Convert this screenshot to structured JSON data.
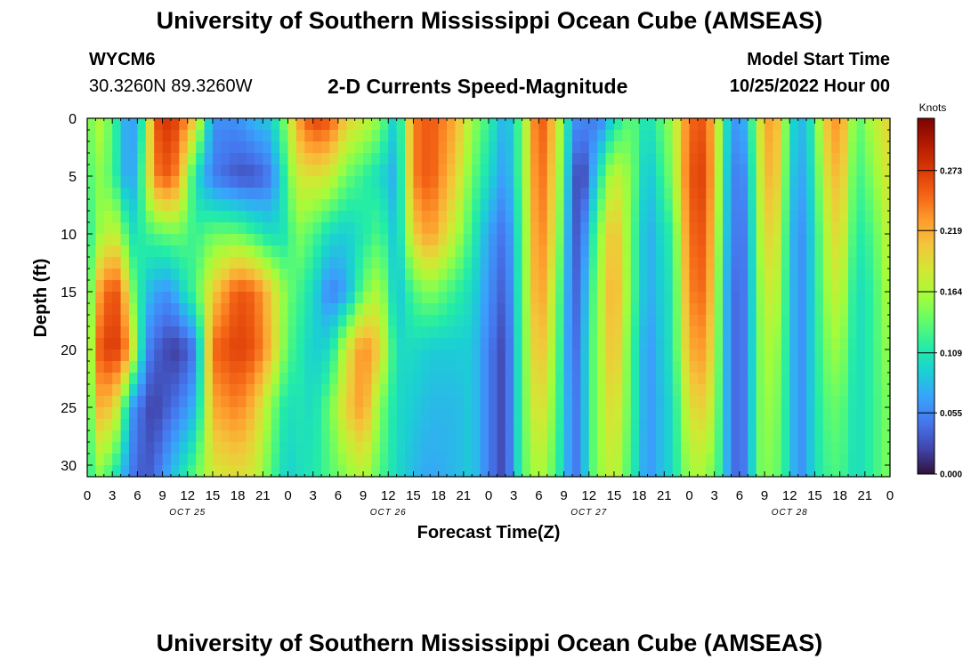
{
  "header": {
    "title": "University of Southern Mississippi Ocean Cube (AMSEAS)",
    "station_id": "WYCM6",
    "coordinates": "30.3260N  89.3260W",
    "chart_heading": "2-D Currents Speed-Magnitude",
    "model_start_label": "Model Start Time",
    "model_start_value": "10/25/2022 Hour 00"
  },
  "footer": {
    "title": "University of Southern Mississippi Ocean Cube (AMSEAS)"
  },
  "chart_data": {
    "type": "heatmap",
    "title": "2-D Currents Speed-Magnitude",
    "xlabel": "Forecast Time(Z)",
    "ylabel": "Depth (ft)",
    "ylim": [
      0,
      31
    ],
    "x_range_hours": [
      0,
      96
    ],
    "x_tick_labels": [
      "0",
      "3",
      "6",
      "9",
      "12",
      "15",
      "18",
      "21",
      "0",
      "3",
      "6",
      "9",
      "12",
      "15",
      "18",
      "21",
      "0",
      "3",
      "6",
      "9",
      "12",
      "15",
      "18",
      "21",
      "0",
      "3",
      "6",
      "9",
      "12",
      "15",
      "18",
      "21",
      "0"
    ],
    "date_labels": [
      {
        "hour": 12,
        "label": "OCT 25"
      },
      {
        "hour": 36,
        "label": "OCT 26"
      },
      {
        "hour": 60,
        "label": "OCT 27"
      },
      {
        "hour": 84,
        "label": "OCT 28"
      }
    ],
    "y_ticks": [
      0,
      5,
      10,
      15,
      20,
      25,
      30
    ],
    "colorbar": {
      "unit": "Knots",
      "min": 0.0,
      "max": 0.32,
      "ticks": [
        0.0,
        0.055,
        0.109,
        0.164,
        0.219,
        0.273
      ],
      "tick_labels": [
        "0.000",
        "0.055",
        "0.109",
        "0.164",
        "0.219",
        "0.273"
      ]
    },
    "profiles": [
      {
        "hour": 0,
        "speed": [
          0.13,
          0.12,
          0.11,
          0.1,
          0.09,
          0.09,
          0.1
        ]
      },
      {
        "hour": 1,
        "speed": [
          0.17,
          0.15,
          0.14,
          0.2,
          0.24,
          0.21,
          0.15
        ]
      },
      {
        "hour": 2,
        "speed": [
          0.16,
          0.15,
          0.17,
          0.25,
          0.27,
          0.22,
          0.14
        ]
      },
      {
        "hour": 4,
        "speed": [
          0.1,
          0.1,
          0.17,
          0.26,
          0.27,
          0.17,
          0.09
        ]
      },
      {
        "hour": 5,
        "speed": [
          0.05,
          0.05,
          0.1,
          0.16,
          0.22,
          0.07,
          0.05
        ]
      },
      {
        "hour": 7,
        "speed": [
          0.13,
          0.15,
          0.12,
          0.09,
          0.06,
          0.03,
          0.03
        ]
      },
      {
        "hour": 8,
        "speed": [
          0.26,
          0.24,
          0.13,
          0.07,
          0.04,
          0.02,
          0.04
        ]
      },
      {
        "hour": 10,
        "speed": [
          0.28,
          0.26,
          0.14,
          0.06,
          0.02,
          0.04,
          0.08
        ]
      },
      {
        "hour": 11,
        "speed": [
          0.26,
          0.22,
          0.14,
          0.09,
          0.02,
          0.05,
          0.1
        ]
      },
      {
        "hour": 13,
        "speed": [
          0.2,
          0.1,
          0.12,
          0.13,
          0.05,
          0.08,
          0.14
        ]
      },
      {
        "hour": 15,
        "speed": [
          0.06,
          0.05,
          0.14,
          0.2,
          0.25,
          0.22,
          0.18
        ]
      },
      {
        "hour": 18,
        "speed": [
          0.06,
          0.03,
          0.14,
          0.26,
          0.27,
          0.24,
          0.19
        ]
      },
      {
        "hour": 20,
        "speed": [
          0.08,
          0.03,
          0.12,
          0.25,
          0.26,
          0.21,
          0.18
        ]
      },
      {
        "hour": 22,
        "speed": [
          0.09,
          0.05,
          0.1,
          0.2,
          0.21,
          0.15,
          0.13
        ]
      },
      {
        "hour": 24,
        "speed": [
          0.16,
          0.13,
          0.11,
          0.14,
          0.13,
          0.1,
          0.09
        ]
      },
      {
        "hour": 25,
        "speed": [
          0.22,
          0.18,
          0.15,
          0.13,
          0.12,
          0.11,
          0.1
        ]
      },
      {
        "hour": 27,
        "speed": [
          0.27,
          0.19,
          0.13,
          0.1,
          0.09,
          0.1,
          0.11
        ]
      },
      {
        "hour": 29,
        "speed": [
          0.26,
          0.18,
          0.1,
          0.05,
          0.1,
          0.14,
          0.13
        ]
      },
      {
        "hour": 31,
        "speed": [
          0.2,
          0.14,
          0.09,
          0.07,
          0.18,
          0.2,
          0.15
        ]
      },
      {
        "hour": 33,
        "speed": [
          0.18,
          0.12,
          0.11,
          0.14,
          0.24,
          0.23,
          0.17
        ]
      },
      {
        "hour": 35,
        "speed": [
          0.15,
          0.1,
          0.13,
          0.17,
          0.2,
          0.15,
          0.13
        ]
      },
      {
        "hour": 37,
        "speed": [
          0.08,
          0.07,
          0.08,
          0.08,
          0.1,
          0.1,
          0.1
        ]
      },
      {
        "hour": 39,
        "speed": [
          0.24,
          0.24,
          0.2,
          0.13,
          0.1,
          0.09,
          0.08
        ]
      },
      {
        "hour": 41,
        "speed": [
          0.26,
          0.26,
          0.23,
          0.15,
          0.09,
          0.08,
          0.07
        ]
      },
      {
        "hour": 44,
        "speed": [
          0.22,
          0.2,
          0.17,
          0.12,
          0.09,
          0.08,
          0.08
        ]
      },
      {
        "hour": 46,
        "speed": [
          0.16,
          0.14,
          0.12,
          0.1,
          0.09,
          0.09,
          0.09
        ]
      },
      {
        "hour": 48,
        "speed": [
          0.12,
          0.1,
          0.07,
          0.06,
          0.05,
          0.05,
          0.05
        ]
      },
      {
        "hour": 50,
        "speed": [
          0.07,
          0.06,
          0.04,
          0.03,
          0.02,
          0.02,
          0.02
        ]
      },
      {
        "hour": 52,
        "speed": [
          0.14,
          0.14,
          0.13,
          0.13,
          0.13,
          0.13,
          0.13
        ]
      },
      {
        "hour": 54,
        "speed": [
          0.27,
          0.26,
          0.25,
          0.24,
          0.22,
          0.2,
          0.17
        ]
      },
      {
        "hour": 56,
        "speed": [
          0.2,
          0.19,
          0.18,
          0.16,
          0.15,
          0.14,
          0.13
        ]
      },
      {
        "hour": 58,
        "speed": [
          0.07,
          0.05,
          0.04,
          0.04,
          0.04,
          0.05,
          0.05
        ]
      },
      {
        "hour": 59,
        "speed": [
          0.05,
          0.01,
          0.03,
          0.04,
          0.05,
          0.05,
          0.05
        ]
      },
      {
        "hour": 60,
        "speed": [
          0.06,
          0.05,
          0.09,
          0.11,
          0.12,
          0.12,
          0.12
        ]
      },
      {
        "hour": 61,
        "speed": [
          0.04,
          0.1,
          0.14,
          0.15,
          0.15,
          0.15,
          0.15
        ]
      },
      {
        "hour": 63,
        "speed": [
          0.1,
          0.18,
          0.22,
          0.23,
          0.22,
          0.2,
          0.18
        ]
      },
      {
        "hour": 65,
        "speed": [
          0.14,
          0.15,
          0.14,
          0.14,
          0.13,
          0.13,
          0.12
        ]
      },
      {
        "hour": 67,
        "speed": [
          0.1,
          0.08,
          0.07,
          0.07,
          0.06,
          0.06,
          0.06
        ]
      },
      {
        "hour": 70,
        "speed": [
          0.16,
          0.15,
          0.12,
          0.11,
          0.11,
          0.1,
          0.1
        ]
      },
      {
        "hour": 72,
        "speed": [
          0.25,
          0.26,
          0.25,
          0.24,
          0.22,
          0.19,
          0.16
        ]
      },
      {
        "hour": 74,
        "speed": [
          0.26,
          0.27,
          0.26,
          0.25,
          0.23,
          0.2,
          0.16
        ]
      },
      {
        "hour": 76,
        "speed": [
          0.14,
          0.13,
          0.12,
          0.11,
          0.11,
          0.11,
          0.11
        ]
      },
      {
        "hour": 77,
        "speed": [
          0.06,
          0.05,
          0.05,
          0.04,
          0.04,
          0.04,
          0.04
        ]
      },
      {
        "hour": 79,
        "speed": [
          0.08,
          0.06,
          0.05,
          0.05,
          0.05,
          0.05,
          0.05
        ]
      },
      {
        "hour": 80,
        "speed": [
          0.17,
          0.16,
          0.15,
          0.14,
          0.14,
          0.14,
          0.14
        ]
      },
      {
        "hour": 82,
        "speed": [
          0.24,
          0.23,
          0.21,
          0.19,
          0.17,
          0.16,
          0.15
        ]
      },
      {
        "hour": 84,
        "speed": [
          0.12,
          0.11,
          0.1,
          0.1,
          0.1,
          0.1,
          0.1
        ]
      },
      {
        "hour": 85,
        "speed": [
          0.07,
          0.06,
          0.05,
          0.05,
          0.05,
          0.05,
          0.05
        ]
      },
      {
        "hour": 87,
        "speed": [
          0.12,
          0.11,
          0.1,
          0.1,
          0.1,
          0.1,
          0.1
        ]
      },
      {
        "hour": 88,
        "speed": [
          0.2,
          0.18,
          0.16,
          0.15,
          0.14,
          0.13,
          0.12
        ]
      },
      {
        "hour": 90,
        "speed": [
          0.24,
          0.22,
          0.2,
          0.18,
          0.16,
          0.14,
          0.13
        ]
      },
      {
        "hour": 92,
        "speed": [
          0.13,
          0.12,
          0.11,
          0.1,
          0.1,
          0.1,
          0.1
        ]
      },
      {
        "hour": 94,
        "speed": [
          0.17,
          0.15,
          0.13,
          0.12,
          0.12,
          0.12,
          0.12
        ]
      },
      {
        "hour": 96,
        "speed": [
          0.2,
          0.19,
          0.18,
          0.17,
          0.16,
          0.15,
          0.15
        ]
      }
    ],
    "profile_depths": [
      0,
      5,
      10,
      15,
      20,
      25,
      31
    ]
  },
  "colors": {
    "scale": [
      "#30123b",
      "#4145ab",
      "#4675ed",
      "#39a2fc",
      "#1bcfd4",
      "#24eca6",
      "#61fc6c",
      "#a4fc3b",
      "#d1e834",
      "#f3c63a",
      "#fe9b2d",
      "#f36315",
      "#d93806",
      "#b11901",
      "#7a0402"
    ]
  }
}
